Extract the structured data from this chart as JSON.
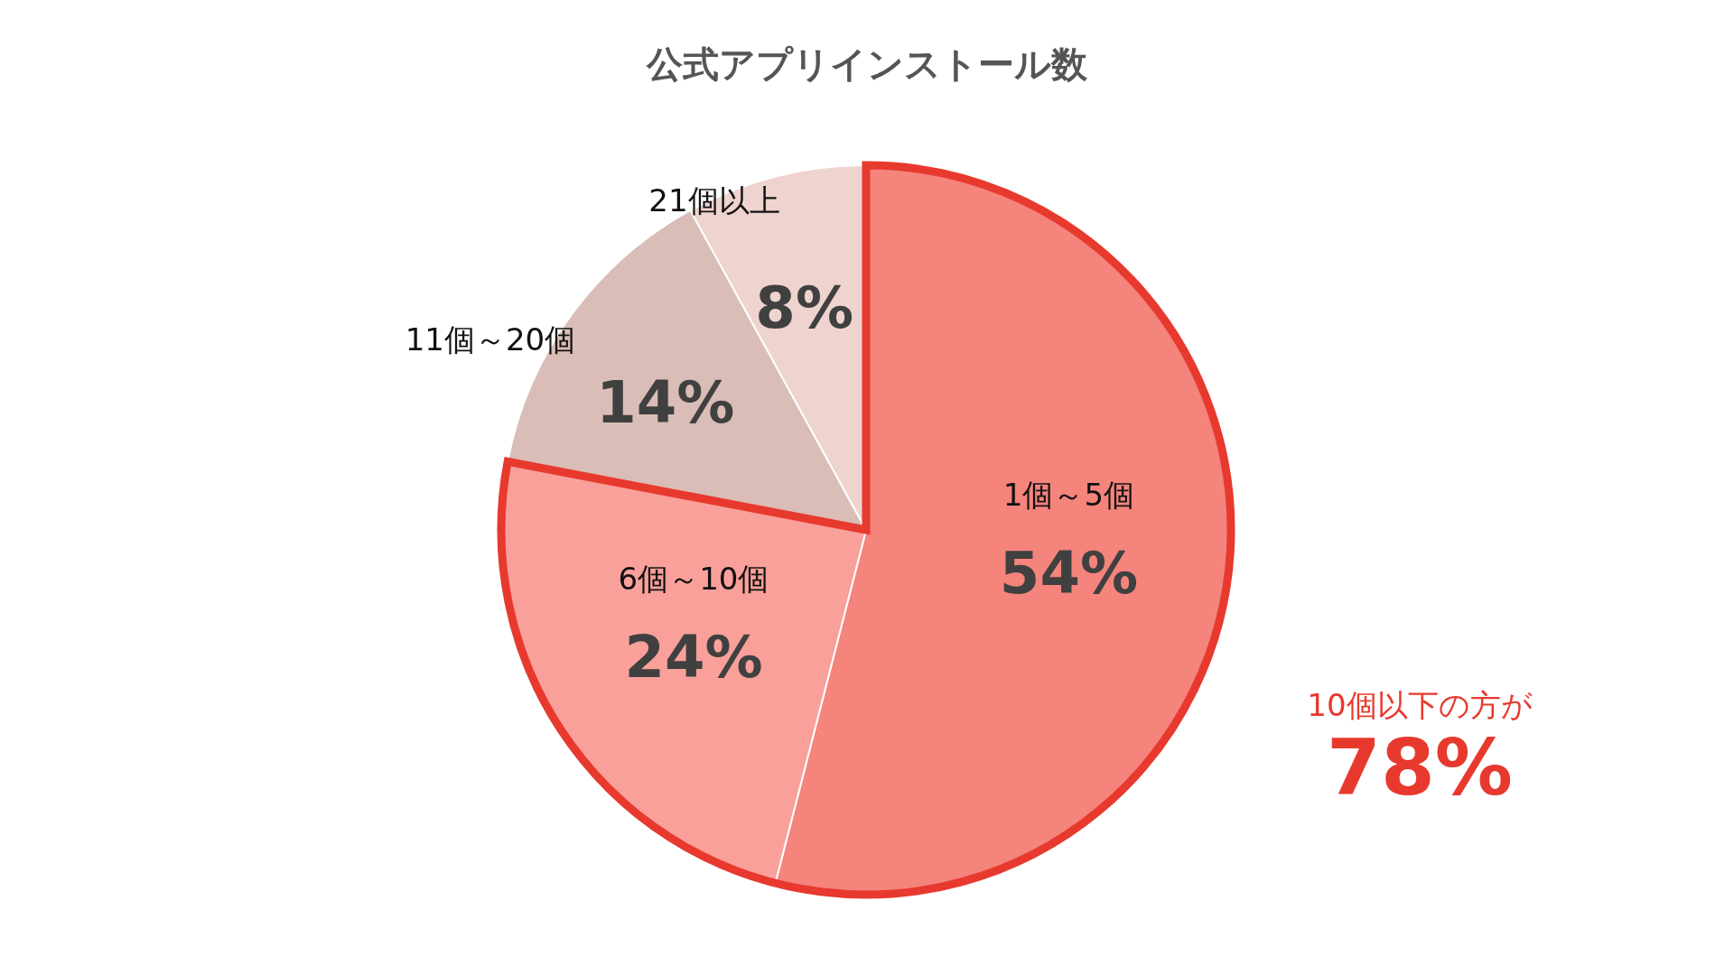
{
  "chart_data": {
    "type": "pie",
    "title": "公式アプリインストール数",
    "categories": [
      "1個～5個",
      "6個～10個",
      "11個～20個",
      "21個以上"
    ],
    "values": [
      54,
      24,
      14,
      8
    ],
    "colors": [
      "#f4847c",
      "#f9a09a",
      "#d9bdb6",
      "#efd3cf"
    ],
    "value_labels": [
      "54%",
      "24%",
      "14%",
      "8%"
    ],
    "annotations": [
      "10個以下の方が",
      "78%"
    ]
  }
}
